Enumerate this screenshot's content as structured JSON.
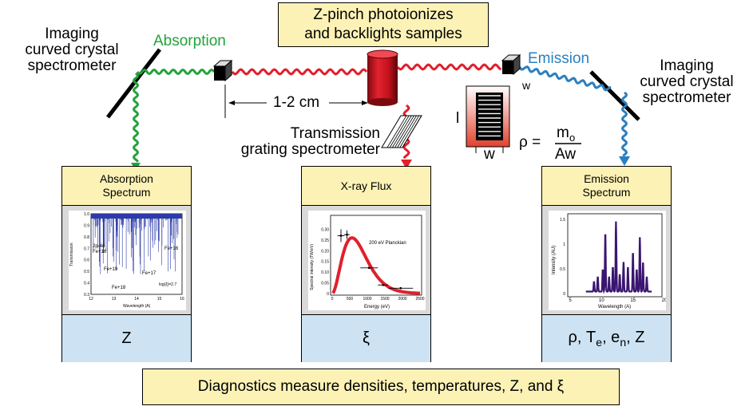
{
  "title_box": {
    "line1": "Z-pinch photoionizes",
    "line2": "and backlights samples"
  },
  "left_spectrometer": {
    "line1": "Imaging",
    "line2": "curved crystal",
    "line3": "spectrometer"
  },
  "right_spectrometer": {
    "line1": "Imaging",
    "line2": "curved crystal",
    "line3": "spectrometer"
  },
  "absorption_label": "Absorption",
  "emission_label": "Emission",
  "distance_label": "1-2 cm",
  "transmission": {
    "line1": "Transmission",
    "line2": "grating spectrometer"
  },
  "sample": {
    "l_label": "l",
    "w_label": "w",
    "w_small": "w"
  },
  "density_formula": {
    "rho": "ρ =",
    "numerator": "m",
    "numerator_sub": "o",
    "denominator": "Aw"
  },
  "panels": [
    {
      "title": "Absorption Spectrum",
      "footer": "Z"
    },
    {
      "title": "X-ray Flux",
      "footer": "ξ"
    },
    {
      "title": "Emission Spectrum",
      "footer": "ρ, Te, en, Z"
    }
  ],
  "absorption_plot": {
    "ylabel": "Transmission",
    "xlabel": "Wavelength (A)",
    "yticks": [
      "1.0",
      "0.9",
      "0.8",
      "0.7",
      "0.6",
      "0.5",
      "0.4",
      "0.3"
    ],
    "xticks": [
      "12",
      "13",
      "14",
      "15",
      "16"
    ],
    "annotations": [
      "2p-4d",
      "Fe+16",
      "Fe+19",
      "Fe+17",
      "Fe+18",
      "Fe+16",
      "log(ξ)=2.7"
    ]
  },
  "flux_plot": {
    "ylabel": "Spectral intensity (TW/eV)",
    "xlabel": "Energy (eV)",
    "yticks": [
      "0.30",
      "0.25",
      "0.20",
      "0.15",
      "0.10",
      "0.05",
      "0"
    ],
    "xticks": [
      "0",
      "500",
      "1000",
      "1500",
      "2000",
      "2500"
    ],
    "legend": "200 eV Planckian"
  },
  "emission_plot": {
    "ylabel": "Intensity (AU)",
    "xlabel": "Wavelength (A)",
    "yticks": [
      "1.5",
      "1",
      "0.5",
      "0"
    ],
    "xticks": [
      "5",
      "10",
      "15",
      "20"
    ]
  },
  "bottom_text": "Diagnostics measure densities, temperatures, Z, and ξ",
  "colors": {
    "absorption_green": "#22a33a",
    "emission_blue": "#2b7fc0",
    "beam_red": "#e0202c",
    "box_yellow": "#fdf2b6",
    "box_blue": "#cde3f3"
  }
}
